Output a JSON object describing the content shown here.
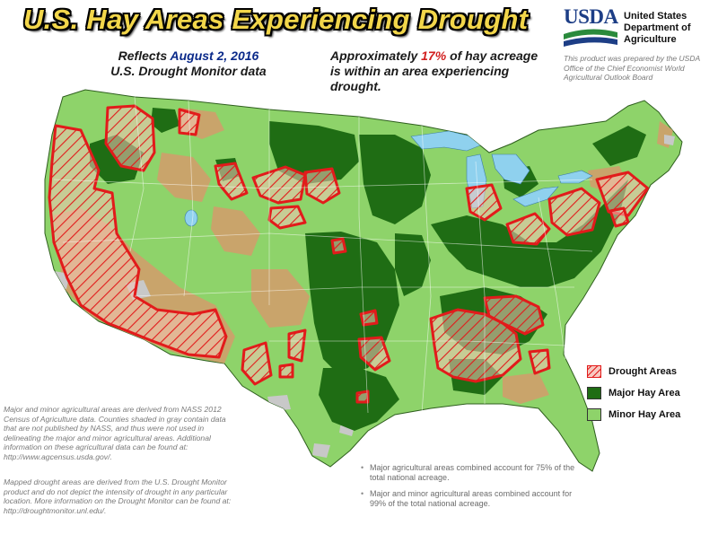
{
  "header": {
    "title": "U.S. Hay Areas Experiencing Drought",
    "reflects_label": "Reflects",
    "reflects_date": "August 2, 2016",
    "source_label": "U.S. Drought Monitor data",
    "stat_prefix": "Approximately",
    "stat_percent": "17%",
    "stat_suffix": "of hay acreage is within an area experiencing drought."
  },
  "agency": {
    "logo_text": "USDA",
    "name_line1": "United States",
    "name_line2": "Department of",
    "name_line3": "Agriculture",
    "credit": "This product was prepared by the USDA Office of the Chief Economist World Agricultural Outlook Board"
  },
  "legend": {
    "items": [
      {
        "label": "Drought Areas",
        "icon": "hatched-red-swatch"
      },
      {
        "label": "Major Hay Area",
        "icon": "dark-green-swatch"
      },
      {
        "label": "Minor Hay Area",
        "icon": "light-green-swatch"
      }
    ]
  },
  "notes": {
    "note1": "Major and minor agricultural areas are derived from NASS 2012 Census of Agriculture data.  Counties shaded in gray contain data that are not published by NASS, and thus were not used in delineating the major and minor agricultural areas.  Additional information on these agricultural data can be found at:  http://www.agcensus.usda.gov/.",
    "note2": "Mapped drought areas are derived from the U.S. Drought Monitor product and do not depict the intensity of drought in any particular location.  More information on the Drought Monitor can be found at:  http://droughtmonitor.unl.edu/."
  },
  "bullets": [
    "Major agricultural areas combined account for 75% of the total national acreage.",
    "Major and minor agricultural areas combined account for 99% of the total national acreage."
  ],
  "colors": {
    "title_fill": "#f2d64a",
    "date_blue": "#0b2a8a",
    "percent_red": "#d21f1f",
    "drought_red": "#e21b1b",
    "major_green": "#1f6d14",
    "minor_green": "#8ed36a",
    "non_hay_tan": "#c9a46b",
    "no_data_gray": "#c8c8c8",
    "water_blue": "#8fd1ee"
  }
}
